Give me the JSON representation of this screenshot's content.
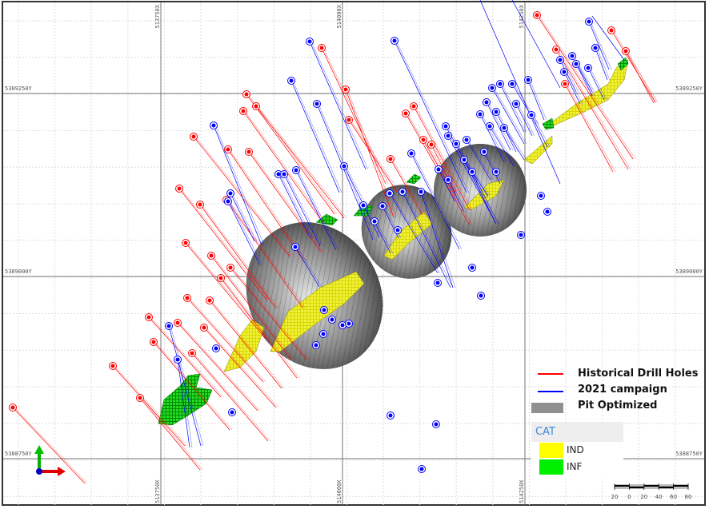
{
  "grid": {
    "x_labels": [
      "513750X",
      "514000X",
      "514250X"
    ],
    "y_labels": [
      "5389250Y",
      "5389000Y",
      "5388750Y"
    ]
  },
  "legend": {
    "items": [
      {
        "label": "Historical Drill Holes",
        "color": "#ff0000",
        "symbol": "line"
      },
      {
        "label": "2021 campaign",
        "color": "#0000ff",
        "symbol": "line"
      },
      {
        "label": "Pit Optimized",
        "color": "#909090",
        "symbol": "box"
      }
    ]
  },
  "category_legend": {
    "title": "CAT",
    "items": [
      {
        "label": "IND",
        "color": "#ffff00"
      },
      {
        "label": "INF",
        "color": "#00ee00"
      }
    ]
  },
  "scale_bar": {
    "labels": [
      "20",
      "0",
      "20",
      "40",
      "60",
      "80"
    ]
  },
  "colors": {
    "historical": "#ff0000",
    "campaign_2021": "#0000ff",
    "pit": "#808080",
    "ind": "#ffff00",
    "inf": "#00ee00"
  },
  "icons": {
    "axis_triad": "xyz-axis-icon"
  }
}
